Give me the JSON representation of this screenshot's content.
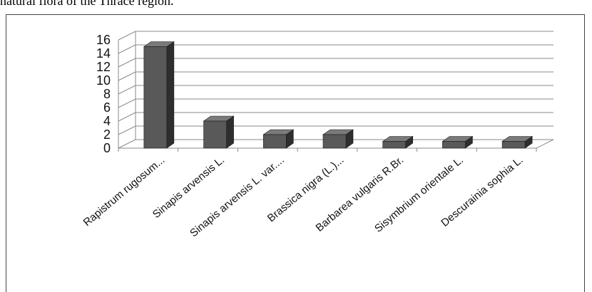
{
  "caption": "natural flora of the Thrace region.",
  "chart_data": {
    "type": "bar",
    "title": "",
    "xlabel": "",
    "ylabel": "",
    "categories": [
      "Rapistrum rugosum...",
      "Sinapis arvensis L.",
      "Sinapis arvensis L. var....",
      "Brassica nigra (L.)...",
      "Barbarea vulgaris R.Br.",
      "Sisymbrium orientale L.",
      "Descurainia sophia L."
    ],
    "values": [
      15,
      4,
      2,
      2,
      1,
      1,
      1
    ],
    "ylim": [
      0,
      16
    ],
    "yticks": [
      "0",
      "2",
      "4",
      "6",
      "8",
      "10",
      "12",
      "14",
      "16"
    ],
    "grid": true,
    "legend": "none",
    "style": "3d-column",
    "colors": {
      "bar_front": "#595959",
      "bar_side": "#2e2e2e",
      "bar_top": "#7a7a7a",
      "grid": "#8a8a8a"
    }
  }
}
